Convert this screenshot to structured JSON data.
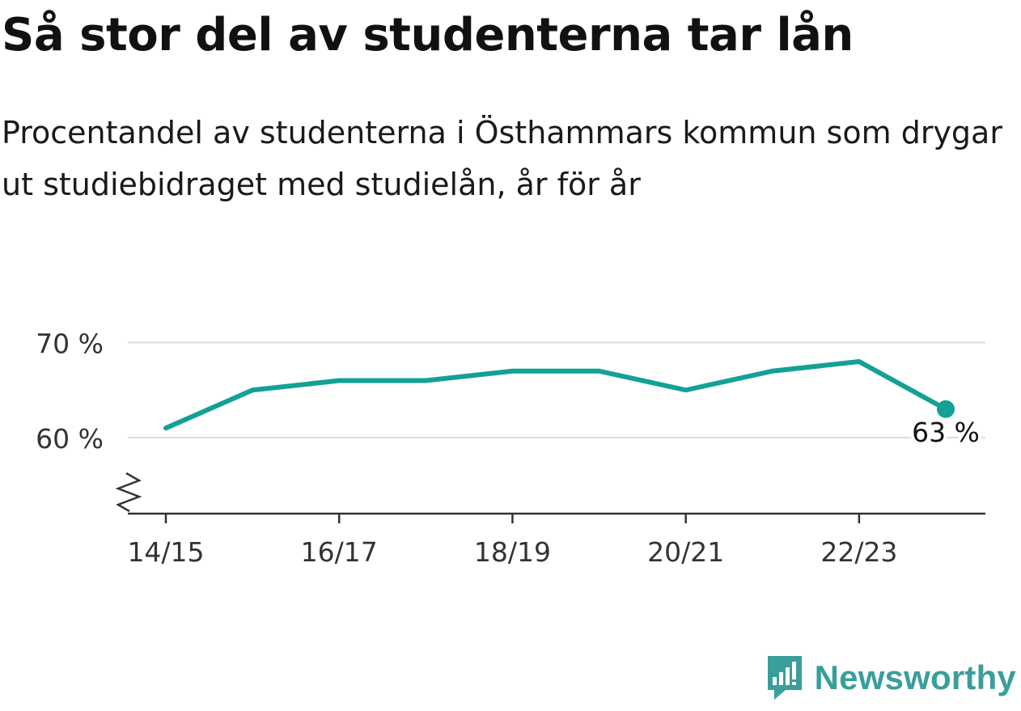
{
  "header": {
    "title": "Så stor del av studenterna tar lån",
    "subtitle": "Procentandel av studenterna i Östhammars kommun som drygar ut studiebidraget med studielån, år för år"
  },
  "brand": {
    "name": "Newsworthy",
    "logo_icon": "newsworthy-chart-icon",
    "color": "#3a9e9a"
  },
  "chart_data": {
    "type": "line",
    "x": [
      "14/15",
      "15/16",
      "16/17",
      "17/18",
      "18/19",
      "19/20",
      "20/21",
      "21/22",
      "22/23",
      "23/24"
    ],
    "series": [
      {
        "values": [
          61,
          65,
          66,
          66,
          67,
          67,
          65,
          67,
          68,
          63
        ],
        "color": "#13a196"
      }
    ],
    "x_tick_labels": [
      "14/15",
      "16/17",
      "18/19",
      "20/21",
      "22/23"
    ],
    "y_ticks": [
      {
        "value": 60,
        "label": "60 %"
      },
      {
        "value": 70,
        "label": "70 %"
      }
    ],
    "ylim": [
      52,
      72
    ],
    "y_axis_break": true,
    "grid": true,
    "end_label": "63 %",
    "xlabel": "",
    "ylabel": ""
  }
}
